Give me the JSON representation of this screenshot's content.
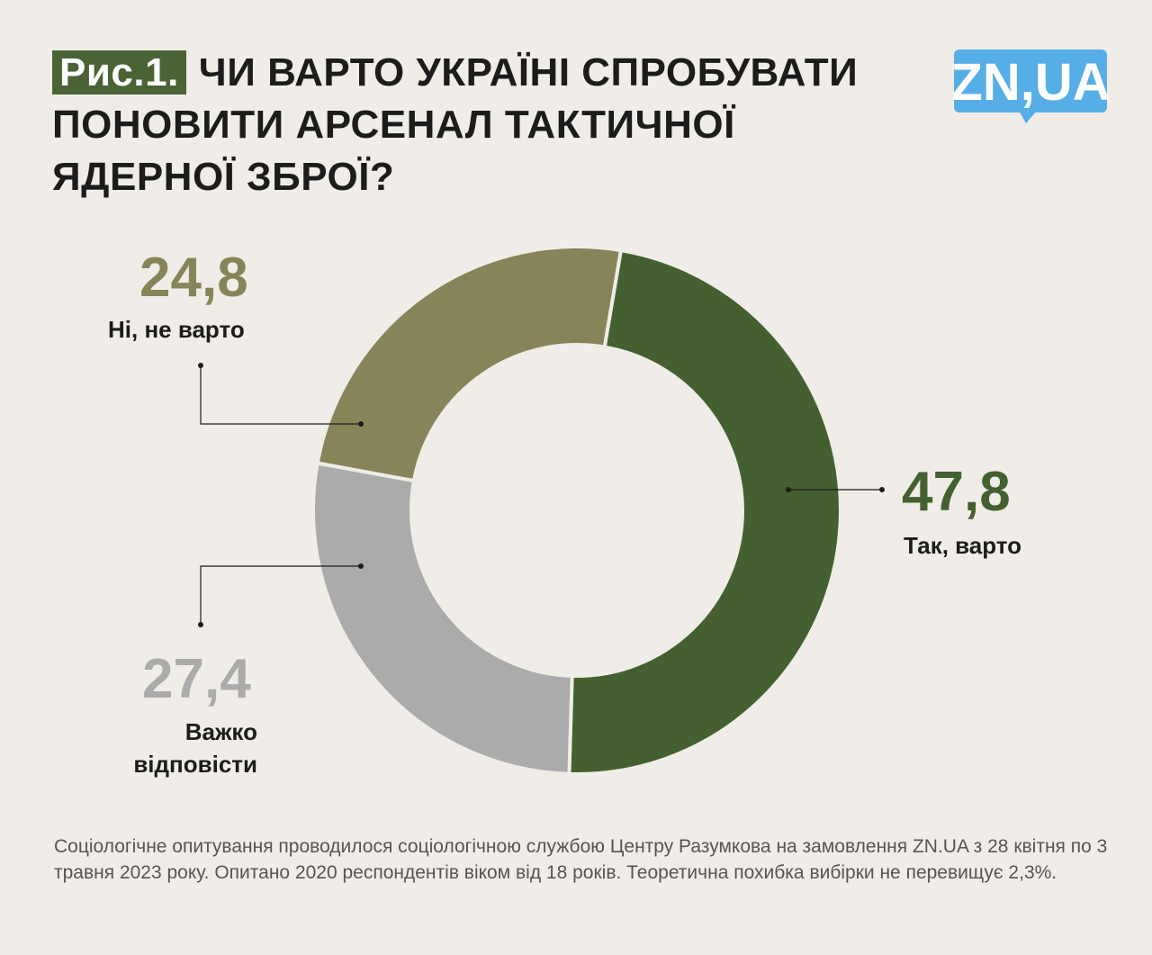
{
  "title": {
    "badge": "Рис.1.",
    "text": "ЧИ ВАРТО УКРАЇНІ СПРОБУВАТИ ПОНОВИТИ АРСЕНАЛ ТАКТИЧНОЇ ЯДЕРНОЇ ЗБРОЇ?"
  },
  "logo": "ZN,UA",
  "colors": {
    "background": "#f0ede8",
    "accent": "#4a6334",
    "logo": "#56aee6"
  },
  "chart_data": {
    "type": "pie",
    "donut": true,
    "categories": [
      "Так, варто",
      "Важко відповісти",
      "Ні, не варто"
    ],
    "values": [
      47.8,
      27.4,
      24.8
    ],
    "value_labels": [
      "47,8",
      "27,4",
      "24,8"
    ],
    "colors": [
      "#456030",
      "#ababab",
      "#878459"
    ]
  },
  "footnote": "Соціологічне опитування проводилося соціологічною службою Центру Разумкова на замовлення ZN.UA з 28 квітня по 3 травня 2023 року. Опитано 2020 респондентів віком від 18 років. Теоретична похибка вибірки не перевищує 2,3%."
}
